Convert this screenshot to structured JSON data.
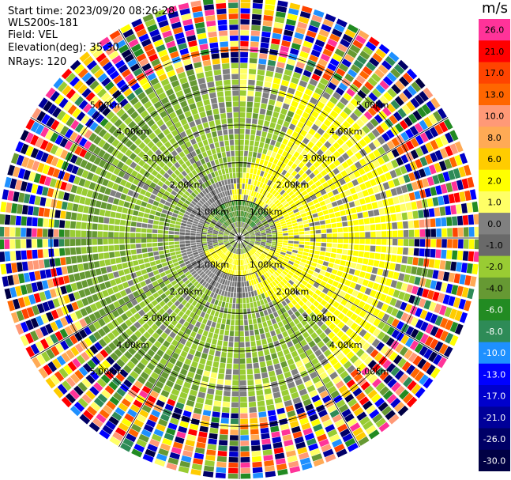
{
  "info": {
    "start_time": "Start time: 2023/09/20 08:26:28",
    "site": "WLS200s-181",
    "field": "Field: VEL",
    "elevation": "Elevation(deg): 35.30",
    "nrays": "NRays: 120"
  },
  "chart_data": {
    "type": "ppi-polar-heatmap",
    "field": "VEL",
    "elevation_deg": 35.3,
    "n_rays": 120,
    "range_ring_labels": [
      "1.00km",
      "2.00km",
      "3.00km",
      "4.00km",
      "5.00km"
    ],
    "range_rings_km": [
      1,
      2,
      3,
      4,
      5
    ],
    "max_range_km": 6.4,
    "azimuth_spokes_deg": [
      0,
      30,
      60,
      90,
      120,
      150,
      180,
      210,
      240,
      270,
      300,
      330
    ],
    "velocity_pattern": {
      "toward_ring_inner_km": 0.8,
      "toward_ring_outer_km": 3.6,
      "away_sector_center_az_deg": 80,
      "away_sector_extent_km": 4.4,
      "noisy_beyond_km": 4.6
    },
    "colorbar": {
      "unit": "m/s",
      "ticks": [
        "26.0",
        "21.0",
        "17.0",
        "13.0",
        "10.0",
        "8.0",
        "6.0",
        "2.0",
        "1.0",
        "0.0",
        "-1.0",
        "-2.0",
        "-4.0",
        "-6.0",
        "-8.0",
        "-10.0",
        "-13.0",
        "-17.0",
        "-21.0",
        "-26.0",
        "-30.0"
      ],
      "colors": [
        "#ff3399",
        "#ff0000",
        "#ff4400",
        "#ff6600",
        "#ff9977",
        "#ffaa55",
        "#ffcc00",
        "#ffff00",
        "#ffff66",
        "#808080",
        "#696969",
        "#99cc33",
        "#669933",
        "#228b22",
        "#2e8b57",
        "#1e90ff",
        "#0000ff",
        "#0000cc",
        "#000099",
        "#000066",
        "#000044"
      ]
    }
  }
}
